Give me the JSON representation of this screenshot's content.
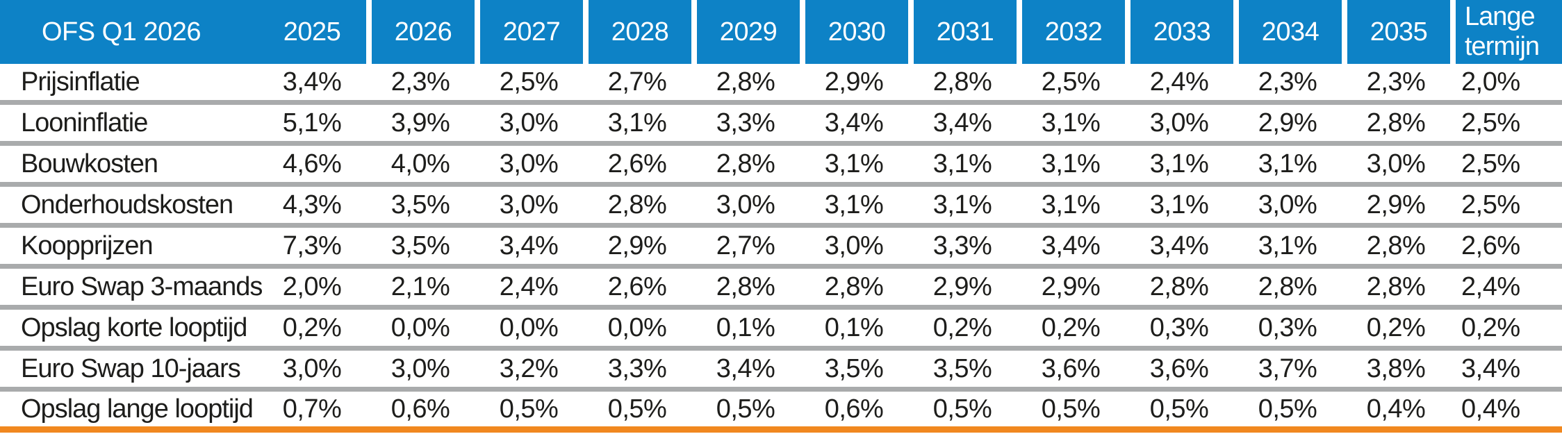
{
  "chart_data": {
    "type": "table",
    "title": "OFS Q1 2026",
    "columns": [
      "2025",
      "2026",
      "2027",
      "2028",
      "2029",
      "2030",
      "2031",
      "2032",
      "2033",
      "2034",
      "2035",
      "Lange termijn"
    ],
    "rows": [
      {
        "label": "Prijsinflatie",
        "values": [
          "3,4%",
          "2,3%",
          "2,5%",
          "2,7%",
          "2,8%",
          "2,9%",
          "2,8%",
          "2,5%",
          "2,4%",
          "2,3%",
          "2,3%",
          "2,0%"
        ]
      },
      {
        "label": "Looninflatie",
        "values": [
          "5,1%",
          "3,9%",
          "3,0%",
          "3,1%",
          "3,3%",
          "3,4%",
          "3,4%",
          "3,1%",
          "3,0%",
          "2,9%",
          "2,8%",
          "2,5%"
        ]
      },
      {
        "label": "Bouwkosten",
        "values": [
          "4,6%",
          "4,0%",
          "3,0%",
          "2,6%",
          "2,8%",
          "3,1%",
          "3,1%",
          "3,1%",
          "3,1%",
          "3,1%",
          "3,0%",
          "2,5%"
        ]
      },
      {
        "label": "Onderhoudskosten",
        "values": [
          "4,3%",
          "3,5%",
          "3,0%",
          "2,8%",
          "3,0%",
          "3,1%",
          "3,1%",
          "3,1%",
          "3,1%",
          "3,0%",
          "2,9%",
          "2,5%"
        ]
      },
      {
        "label": "Koopprijzen",
        "values": [
          "7,3%",
          "3,5%",
          "3,4%",
          "2,9%",
          "2,7%",
          "3,0%",
          "3,3%",
          "3,4%",
          "3,4%",
          "3,1%",
          "2,8%",
          "2,6%"
        ]
      },
      {
        "label": "Euro Swap 3-maands",
        "values": [
          "2,0%",
          "2,1%",
          "2,4%",
          "2,6%",
          "2,8%",
          "2,8%",
          "2,9%",
          "2,9%",
          "2,8%",
          "2,8%",
          "2,8%",
          "2,4%"
        ]
      },
      {
        "label": "Opslag korte looptijd",
        "values": [
          "0,2%",
          "0,0%",
          "0,0%",
          "0,0%",
          "0,1%",
          "0,1%",
          "0,2%",
          "0,2%",
          "0,3%",
          "0,3%",
          "0,2%",
          "0,2%"
        ]
      },
      {
        "label": "Euro Swap 10-jaars",
        "values": [
          "3,0%",
          "3,0%",
          "3,2%",
          "3,3%",
          "3,4%",
          "3,5%",
          "3,5%",
          "3,6%",
          "3,6%",
          "3,7%",
          "3,8%",
          "3,4%"
        ]
      },
      {
        "label": "Opslag lange looptijd",
        "values": [
          "0,7%",
          "0,6%",
          "0,5%",
          "0,5%",
          "0,5%",
          "0,6%",
          "0,5%",
          "0,5%",
          "0,5%",
          "0,5%",
          "0,4%",
          "0,4%"
        ]
      }
    ],
    "layout": {
      "grid": "horizontal-separators-only",
      "header_position": "top"
    }
  },
  "colors": {
    "header_bg": "#0d82c6",
    "header_text": "#ffffff",
    "row_separator": "#a9abac",
    "bottom_border": "#f1881f",
    "body_text": "#1d1d1b",
    "row_bg": "#ffffff"
  }
}
